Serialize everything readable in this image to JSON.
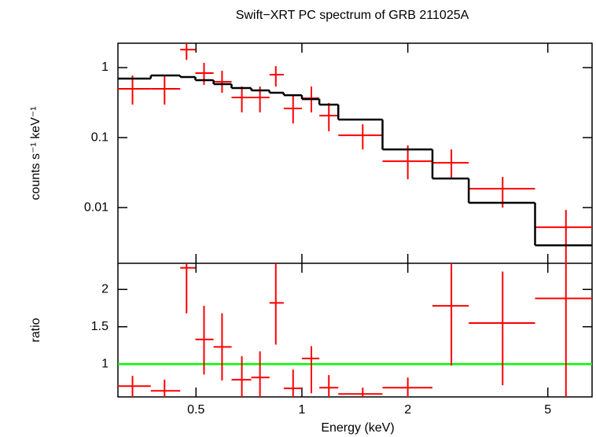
{
  "chart_data": [
    {
      "type": "errorbar",
      "title": "Swift−XRT PC spectrum of GRB 211025A",
      "ylabel": "counts s⁻¹ keV⁻¹",
      "xlim": [
        0.3,
        6.68
      ],
      "ylim": [
        0.0016,
        2.23
      ],
      "xlog": true,
      "ylog": true,
      "yticks": [
        1,
        0.1,
        0.01
      ],
      "series": [
        {
          "color": "#ff0000",
          "x": [
            0.33,
            0.407,
            0.47,
            0.527,
            0.593,
            0.675,
            0.76,
            0.843,
            0.944,
            1.064,
            1.193,
            1.489,
            2.0,
            2.66,
            3.72,
            5.63
          ],
          "xlo": [
            0.3,
            0.372,
            0.451,
            0.498,
            0.561,
            0.631,
            0.718,
            0.809,
            0.888,
            1.0,
            1.121,
            1.269,
            1.695,
            2.35,
            2.98,
            4.6
          ],
          "xhi": [
            0.372,
            0.451,
            0.498,
            0.561,
            0.631,
            0.718,
            0.809,
            0.888,
            1.0,
            1.121,
            1.269,
            1.695,
            2.35,
            2.98,
            4.6,
            6.68
          ],
          "values": [
            0.497,
            0.497,
            1.81,
            0.834,
            0.628,
            0.374,
            0.374,
            0.792,
            0.261,
            0.365,
            0.206,
            0.108,
            0.046,
            0.0437,
            0.0186,
            0.00524
          ],
          "lo": [
            0.296,
            0.296,
            1.29,
            0.566,
            0.437,
            0.229,
            0.229,
            0.537,
            0.159,
            0.229,
            0.123,
            0.0678,
            0.0254,
            0.026,
            0.01,
            0.0016
          ],
          "hi": [
            0.772,
            0.752,
            2.23,
            1.17,
            0.902,
            0.537,
            0.537,
            1.05,
            0.404,
            0.537,
            0.312,
            0.155,
            0.0772,
            0.0678,
            0.0274,
            0.00925
          ]
        },
        {
          "type": "step",
          "color": "#000000",
          "edges": [
            0.3,
            0.372,
            0.451,
            0.498,
            0.561,
            0.631,
            0.718,
            0.809,
            0.888,
            1.0,
            1.121,
            1.269,
            1.695,
            2.35,
            2.98,
            4.6,
            6.68
          ],
          "values": [
            0.697,
            0.772,
            0.733,
            0.661,
            0.581,
            0.51,
            0.472,
            0.437,
            0.404,
            0.355,
            0.296,
            0.181,
            0.0678,
            0.026,
            0.0117,
            0.00289
          ]
        }
      ]
    },
    {
      "type": "errorbar",
      "ylabel": "ratio",
      "xlabel": "Energy (keV)",
      "xlim": [
        0.3,
        6.68
      ],
      "ylim": [
        0.56,
        2.35
      ],
      "xlog": true,
      "xticks": [
        0.5,
        1,
        2,
        5
      ],
      "yticks": [
        2,
        1.5,
        1
      ],
      "reference_line": {
        "value": 1,
        "color": "#00ff00"
      },
      "series": [
        {
          "color": "#ff0000",
          "x": [
            0.33,
            0.407,
            0.47,
            0.527,
            0.593,
            0.675,
            0.76,
            0.843,
            0.944,
            1.064,
            1.193,
            1.489,
            2.0,
            2.66,
            3.72,
            5.63
          ],
          "xlo": [
            0.3,
            0.372,
            0.451,
            0.498,
            0.561,
            0.631,
            0.718,
            0.809,
            0.888,
            1.0,
            1.121,
            1.269,
            1.695,
            2.35,
            2.98,
            4.6
          ],
          "xhi": [
            0.372,
            0.451,
            0.498,
            0.561,
            0.631,
            0.718,
            0.809,
            0.888,
            1.0,
            1.121,
            1.269,
            1.695,
            2.35,
            2.98,
            4.6,
            6.68
          ],
          "values": [
            0.705,
            0.642,
            2.29,
            1.33,
            1.23,
            0.79,
            0.82,
            1.82,
            0.674,
            1.074,
            0.684,
            0.6,
            0.684,
            1.78,
            1.55,
            1.88
          ],
          "lo": [
            0.56,
            0.56,
            1.68,
            0.86,
            0.78,
            0.56,
            0.56,
            1.26,
            0.56,
            0.61,
            0.56,
            0.56,
            0.56,
            0.98,
            0.716,
            0.56
          ],
          "hi": [
            0.842,
            0.79,
            2.35,
            1.78,
            1.68,
            1.105,
            1.17,
            2.35,
            0.926,
            1.24,
            0.853,
            0.684,
            0.82,
            2.35,
            2.24,
            2.35
          ]
        }
      ]
    }
  ]
}
